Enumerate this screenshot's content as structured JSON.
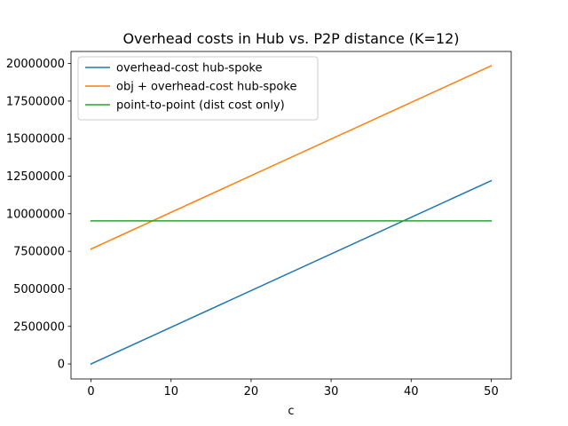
{
  "chart_data": {
    "type": "line",
    "title": "Overhead costs in Hub vs. P2P distance (K=12)",
    "xlabel": "c",
    "ylabel": "",
    "xlim": [
      -2.5,
      52.5
    ],
    "ylim": [
      -1000000,
      20800000
    ],
    "xticks": [
      0,
      10,
      20,
      30,
      40,
      50
    ],
    "yticks": [
      0,
      2500000,
      5000000,
      7500000,
      10000000,
      12500000,
      15000000,
      17500000,
      20000000
    ],
    "grid": false,
    "legend_position": "upper-left",
    "series": [
      {
        "name": "overhead-cost hub-spoke",
        "color": "#1f77b4",
        "x": [
          0,
          50
        ],
        "y": [
          0,
          12200000
        ]
      },
      {
        "name": "obj + overhead-cost hub-spoke",
        "color": "#ff7f0e",
        "x": [
          0,
          50
        ],
        "y": [
          7650000,
          19850000
        ]
      },
      {
        "name": "point-to-point (dist cost only)",
        "color": "#2ca02c",
        "x": [
          0,
          50
        ],
        "y": [
          9520000,
          9520000
        ]
      }
    ]
  }
}
